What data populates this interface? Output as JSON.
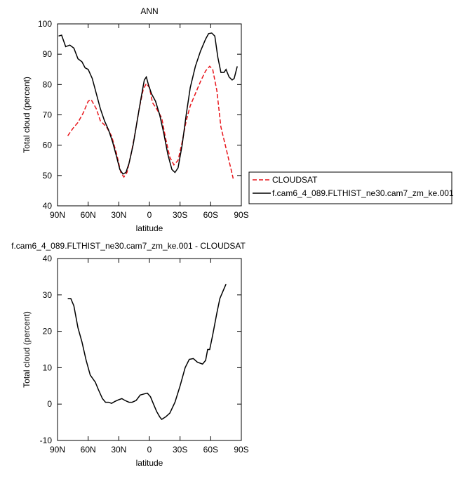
{
  "chart_data": [
    {
      "type": "line",
      "title": "ANN",
      "xlabel": "latitude",
      "ylabel": "Total cloud (percent)",
      "xlim": [
        90,
        -90
      ],
      "xticks": [
        {
          "value": 90,
          "label": "90N"
        },
        {
          "value": 60,
          "label": "60N"
        },
        {
          "value": 30,
          "label": "30N"
        },
        0,
        {
          "value": -30,
          "label": "30S"
        },
        {
          "value": -60,
          "label": "60S"
        },
        {
          "value": -90,
          "label": "90S"
        }
      ],
      "ylim": [
        40,
        100
      ],
      "yticks": [
        40,
        50,
        60,
        70,
        80,
        90,
        100
      ],
      "legend": "outside right",
      "series": [
        {
          "name": "CLOUDSAT",
          "color": "#e8141a",
          "dashed": true,
          "x": [
            80,
            75,
            70,
            65,
            60,
            57,
            52,
            48,
            42,
            37,
            32,
            28,
            25,
            22,
            18,
            14,
            10,
            6,
            3,
            0,
            -3,
            -7,
            -12,
            -16,
            -20,
            -24,
            -28,
            -32,
            -36,
            -40,
            -45,
            -50,
            -55,
            -59,
            -62,
            -66,
            -70,
            -75,
            -80,
            -82
          ],
          "values": [
            63.1,
            65.5,
            67.5,
            70.5,
            74.5,
            75,
            72,
            68,
            66,
            63,
            57,
            51,
            49.5,
            51,
            57,
            64,
            72,
            78.5,
            80.3,
            79,
            74,
            72,
            69,
            62,
            56,
            53.5,
            55,
            61,
            68,
            73,
            77,
            81,
            84.5,
            86,
            85,
            78,
            66,
            59,
            52,
            49
          ]
        },
        {
          "name": "f.cam6_4_089.FLTHIST_ne30.cam7_zm_ke.001",
          "color": "#000000",
          "dashed": false,
          "x": [
            89,
            86,
            82,
            78,
            74,
            70,
            66,
            63,
            60,
            56,
            52,
            48,
            44,
            40,
            36,
            32,
            29,
            26,
            23,
            20,
            16,
            12,
            8,
            5,
            3,
            1,
            -2,
            -6,
            -10,
            -14,
            -18,
            -22,
            -25,
            -28,
            -32,
            -36,
            -40,
            -45,
            -50,
            -55,
            -58,
            -61,
            -64,
            -67,
            -70,
            -73,
            -75,
            -78,
            -81,
            -83,
            -86
          ],
          "values": [
            96,
            96.3,
            92.5,
            93,
            92,
            88.5,
            87.5,
            85.5,
            85,
            82,
            77,
            72,
            68,
            65,
            61,
            56,
            52,
            50.5,
            51,
            54,
            60,
            68,
            76,
            81.5,
            82.5,
            80,
            77,
            74.5,
            70,
            64,
            57,
            52,
            51,
            52.5,
            60,
            70,
            79,
            86,
            91,
            95,
            96.8,
            97,
            96,
            89,
            84,
            84,
            85,
            82.5,
            81.5,
            82,
            86
          ]
        }
      ]
    },
    {
      "type": "line",
      "title": "f.cam6_4_089.FLTHIST_ne30.cam7_zm_ke.001 - CLOUDSAT",
      "xlabel": "latitude",
      "ylabel": "Total cloud (percent)",
      "xlim": [
        90,
        -90
      ],
      "xticks": [
        {
          "value": 90,
          "label": "90N"
        },
        {
          "value": 60,
          "label": "60N"
        },
        {
          "value": 30,
          "label": "30N"
        },
        0,
        {
          "value": -30,
          "label": "30S"
        },
        {
          "value": -60,
          "label": "60S"
        },
        {
          "value": -90,
          "label": "90S"
        }
      ],
      "ylim": [
        -10,
        40
      ],
      "yticks": [
        -10,
        0,
        10,
        20,
        30,
        40
      ],
      "series": [
        {
          "color": "#000000",
          "dashed": false,
          "x": [
            80,
            77,
            74,
            70,
            66,
            62,
            58,
            53,
            50,
            46,
            43,
            40,
            37,
            34,
            30,
            27,
            24,
            20,
            17,
            13,
            9,
            5,
            2,
            -1,
            -4,
            -7,
            -10,
            -12,
            -16,
            -20,
            -25,
            -30,
            -35,
            -39,
            -43,
            -47,
            -52,
            -55,
            -57,
            -59,
            -62,
            -66,
            -69,
            -72,
            -75
          ],
          "values": [
            29,
            29,
            27,
            21,
            17,
            12,
            8,
            6,
            4,
            1.5,
            0.5,
            0.5,
            0.2,
            0.7,
            1.2,
            1.5,
            1,
            0.5,
            0.5,
            1,
            2.5,
            2.8,
            3,
            2,
            0,
            -2,
            -3.5,
            -4.2,
            -3.5,
            -2.5,
            0.5,
            5,
            10,
            12.3,
            12.5,
            11.5,
            11,
            12,
            15,
            15,
            19,
            25,
            29,
            31,
            33
          ]
        }
      ]
    }
  ]
}
